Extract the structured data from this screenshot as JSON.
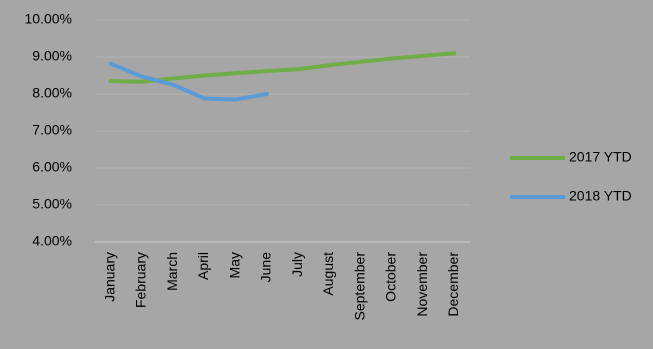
{
  "chart_data": {
    "type": "line",
    "categories": [
      "January",
      "February",
      "March",
      "April",
      "May",
      "June",
      "July",
      "August",
      "September",
      "October",
      "November",
      "December"
    ],
    "series": [
      {
        "name": "2017 YTD",
        "color": "#70ad47",
        "values": [
          8.35,
          8.33,
          8.42,
          8.5,
          8.56,
          8.62,
          8.67,
          8.78,
          8.87,
          8.96,
          9.03,
          9.1
        ]
      },
      {
        "name": "2018 YTD",
        "color": "#5b9bd5",
        "values": [
          8.82,
          8.47,
          8.25,
          7.88,
          7.85,
          8.0,
          null,
          null,
          null,
          null,
          null,
          null
        ]
      }
    ],
    "ylim": [
      4,
      10
    ],
    "yticks": [
      {
        "value": 4,
        "label": "4.00%"
      },
      {
        "value": 5,
        "label": "5.00%"
      },
      {
        "value": 6,
        "label": "6.00%"
      },
      {
        "value": 7,
        "label": "7.00%"
      },
      {
        "value": 8,
        "label": "8.00%"
      },
      {
        "value": 9,
        "label": "9.00%"
      },
      {
        "value": 10,
        "label": "10.00%"
      }
    ],
    "grid": true,
    "legend": "right"
  }
}
